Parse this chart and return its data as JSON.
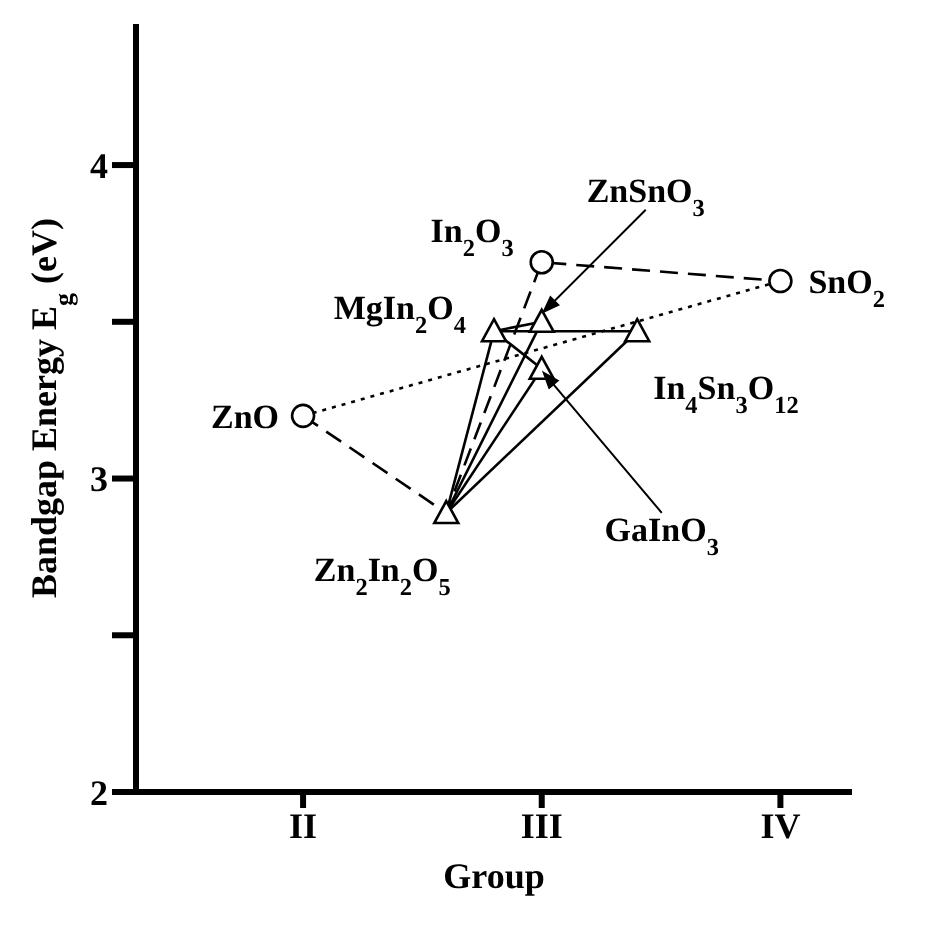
{
  "chart_data": {
    "type": "scatter",
    "xlabel": "Group",
    "ylabel": "Bandgap Energy  E$_{g}$ (eV)",
    "categories": [
      null,
      null,
      null,
      "II",
      null,
      null,
      null,
      null,
      "III",
      null,
      null,
      null,
      null,
      "IV",
      null
    ],
    "ylim": [
      2,
      4.45
    ],
    "yticks": [
      2,
      {
        "value": 2.5,
        "label": null
      },
      3,
      {
        "value": 3.5,
        "label": null
      },
      4
    ],
    "series": [
      {
        "type": "line",
        "color": "#000000",
        "line_style": "dotted",
        "marker": "none",
        "values": [
          null,
          null,
          null,
          3.2,
          null,
          null,
          null,
          null,
          null,
          null,
          null,
          null,
          null,
          3.63,
          null
        ]
      },
      {
        "type": "line",
        "color": "#000000",
        "line_style": "dashed",
        "marker": "none",
        "values": [
          null,
          null,
          null,
          3.2,
          null,
          null,
          2.89,
          null,
          3.69,
          null,
          null,
          null,
          null,
          3.63,
          null
        ]
      },
      {
        "type": "line",
        "color": "#000000",
        "line_style": "solid",
        "marker": "none",
        "values": [
          null,
          null,
          null,
          null,
          null,
          null,
          2.89,
          3.47,
          null,
          null,
          null,
          null,
          null,
          null,
          null
        ]
      },
      {
        "type": "line",
        "color": "#000000",
        "line_style": "solid",
        "marker": "none",
        "values": [
          null,
          null,
          null,
          null,
          null,
          null,
          null,
          3.47,
          null,
          null,
          3.47,
          null,
          null,
          null,
          null
        ]
      },
      {
        "type": "line",
        "color": "#000000",
        "line_style": "solid",
        "marker": "none",
        "values": [
          null,
          null,
          null,
          null,
          null,
          null,
          2.89,
          null,
          null,
          null,
          3.47,
          null,
          null,
          null,
          null
        ]
      },
      {
        "type": "line",
        "color": "#000000",
        "line_style": "solid",
        "marker": "none",
        "values": [
          null,
          null,
          null,
          null,
          null,
          null,
          2.89,
          null,
          3.35,
          null,
          null,
          null,
          null,
          null,
          null
        ]
      },
      {
        "type": "line",
        "color": "#000000",
        "line_style": "solid",
        "marker": "none",
        "values": [
          null,
          null,
          null,
          null,
          null,
          null,
          null,
          3.47,
          3.35,
          null,
          null,
          null,
          null,
          null,
          null
        ]
      },
      {
        "type": "line",
        "color": "#000000",
        "line_style": "solid",
        "marker": "none",
        "values": [
          null,
          null,
          null,
          null,
          null,
          null,
          null,
          3.47,
          3.5,
          null,
          null,
          null,
          null,
          null,
          null
        ]
      },
      {
        "type": "line",
        "color": "#000000",
        "line_style": "solid",
        "marker": "none",
        "values": [
          null,
          null,
          null,
          null,
          null,
          null,
          2.89,
          null,
          3.5,
          null,
          null,
          null,
          null,
          null,
          null
        ]
      },
      {
        "type": "scatter",
        "color": "#000000",
        "marker": "circle",
        "values": [
          null,
          null,
          null,
          3.2,
          null,
          null,
          null,
          null,
          3.69,
          null,
          null,
          null,
          null,
          3.63,
          null
        ]
      },
      {
        "color": "#000000",
        "marker": "triangle",
        "values": [
          null,
          null,
          null,
          null,
          null,
          null,
          2.89,
          3.47,
          3.5,
          null,
          3.47,
          null,
          null,
          null,
          null
        ]
      },
      {
        "color": "#000000",
        "marker": "triangle",
        "values": [
          null,
          null,
          null,
          null,
          null,
          null,
          null,
          null,
          3.35,
          null,
          null,
          null,
          null,
          null,
          null
        ]
      }
    ],
    "annotations": [
      "ZnO",
      {
        "text": "In$_{2}$O$_{3}$",
        "x": "III",
        "y": 3.69
      },
      {
        "text": "SnO$_{2}$",
        "x": "IV",
        "y": 3.63
      },
      "MgIn$_{2}$O$_{4}$",
      {
        "text": "ZnSnO$_{3}$",
        "x": "III",
        "y": 3.5
      },
      "In$_{4}$Sn$_{3}$O$_{12}$",
      {
        "text": "GaInO$_{3}$",
        "x": "III",
        "y": 3.35
      },
      "Zn$_{2}$In$_{2}$O$_{5}$"
    ]
  }
}
